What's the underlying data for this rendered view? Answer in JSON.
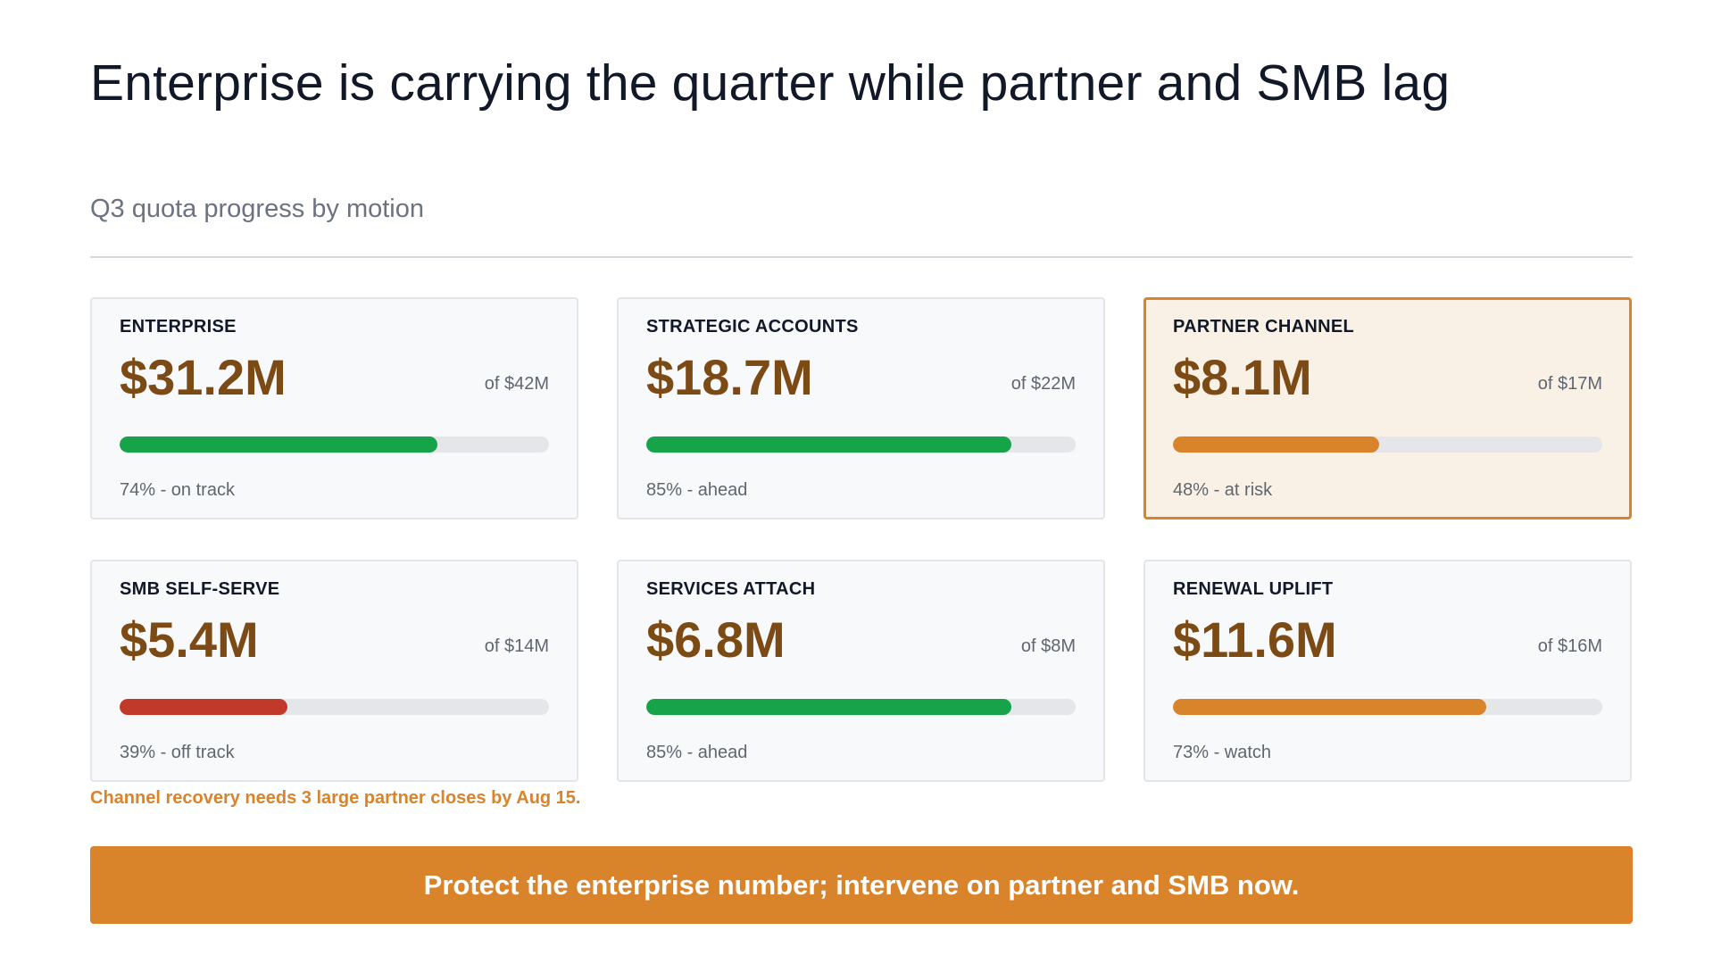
{
  "title": "Enterprise is carrying the quarter while partner and SMB lag",
  "subtitle": "Q3 quota progress by motion",
  "colors": {
    "on_track": "#16a34a",
    "at_risk": "#d9832b",
    "off_track": "#c0392b",
    "value_text": "#7c4a14",
    "highlight_border": "#d9832b"
  },
  "cards": [
    {
      "label": "ENTERPRISE",
      "value": "$31.2M",
      "target": "of $42M",
      "percent": 74,
      "status": "74% - on track",
      "bar_color": "#16a34a",
      "highlighted": false
    },
    {
      "label": "STRATEGIC ACCOUNTS",
      "value": "$18.7M",
      "target": "of $22M",
      "percent": 85,
      "status": "85% - ahead",
      "bar_color": "#16a34a",
      "highlighted": false
    },
    {
      "label": "PARTNER CHANNEL",
      "value": "$8.1M",
      "target": "of $17M",
      "percent": 48,
      "status": "48% - at risk",
      "bar_color": "#d9832b",
      "highlighted": true
    },
    {
      "label": "SMB SELF-SERVE",
      "value": "$5.4M",
      "target": "of $14M",
      "percent": 39,
      "status": "39% - off track",
      "bar_color": "#c0392b",
      "highlighted": false
    },
    {
      "label": "SERVICES ATTACH",
      "value": "$6.8M",
      "target": "of $8M",
      "percent": 85,
      "status": "85% - ahead",
      "bar_color": "#16a34a",
      "highlighted": false
    },
    {
      "label": "RENEWAL UPLIFT",
      "value": "$11.6M",
      "target": "of $16M",
      "percent": 73,
      "status": "73% - watch",
      "bar_color": "#d9832b",
      "highlighted": false
    }
  ],
  "note": "Channel recovery needs 3 large partner closes by Aug 15.",
  "banner": "Protect the enterprise number; intervene on partner and SMB now."
}
